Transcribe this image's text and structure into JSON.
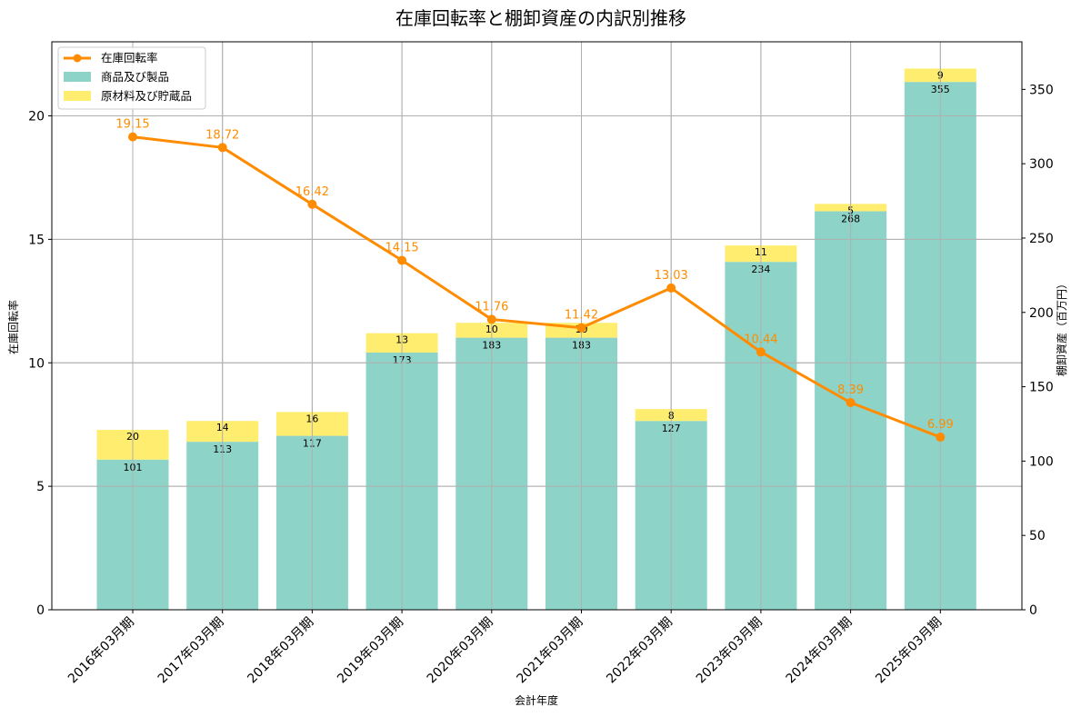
{
  "chart_data": {
    "type": "bar+line",
    "title": "在庫回転率と棚卸資産の内訳別推移",
    "xlabel": "会計年度",
    "ylabel_left": "在庫回転率",
    "ylabel_right": "棚卸資産（百万円）",
    "categories": [
      "2016年03月期",
      "2017年03月期",
      "2018年03月期",
      "2019年03月期",
      "2020年03月期",
      "2021年03月期",
      "2022年03月期",
      "2023年03月期",
      "2024年03月期",
      "2025年03月期"
    ],
    "series": [
      {
        "name": "商品及び製品",
        "type": "stacked-bar",
        "axis": "right",
        "color": "#8dd3c7",
        "values": [
          101,
          113,
          117,
          173,
          183,
          183,
          127,
          234,
          268,
          355
        ]
      },
      {
        "name": "原材料及び貯蔵品",
        "type": "stacked-bar",
        "axis": "right",
        "color": "#ffed6f",
        "values": [
          20,
          14,
          16,
          13,
          10,
          10,
          8,
          11,
          5,
          9
        ]
      },
      {
        "name": "在庫回転率",
        "type": "line",
        "axis": "left",
        "color": "#ff8c00",
        "values": [
          19.15,
          18.72,
          16.42,
          14.15,
          11.76,
          11.42,
          13.03,
          10.44,
          8.39,
          6.99
        ]
      }
    ],
    "ylim_left": [
      0,
      23
    ],
    "ylim_right": [
      0,
      382
    ],
    "yticks_left": [
      0,
      5,
      10,
      15,
      20
    ],
    "yticks_right": [
      0,
      50,
      100,
      150,
      200,
      250,
      300,
      350
    ],
    "grid": true,
    "legend_position": "upper left"
  },
  "legend": {
    "items": [
      {
        "label": "在庫回転率",
        "kind": "line",
        "color": "#ff8c00"
      },
      {
        "label": "商品及び製品",
        "kind": "patch",
        "color": "#8dd3c7"
      },
      {
        "label": "原材料及び貯蔵品",
        "kind": "patch",
        "color": "#ffed6f"
      }
    ]
  }
}
